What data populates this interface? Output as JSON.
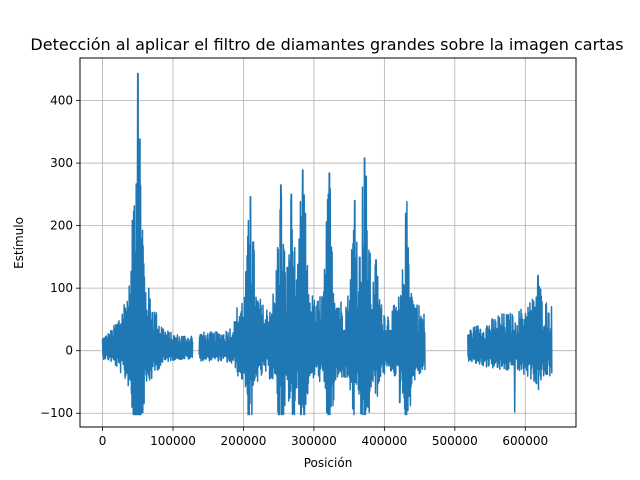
{
  "chart_data": {
    "type": "line",
    "title": "Detección al aplicar el filtro de diamantes grandes sobre la imagen cartas",
    "xlabel": "Posición",
    "ylabel": "Estímulo",
    "xlim": [
      -32000,
      672000
    ],
    "ylim": [
      -122,
      468
    ],
    "xticks": [
      0,
      100000,
      200000,
      300000,
      400000,
      500000,
      600000
    ],
    "xtick_labels": [
      "0",
      "100000",
      "200000",
      "300000",
      "400000",
      "500000",
      "600000"
    ],
    "yticks": [
      -100,
      0,
      100,
      200,
      300,
      400
    ],
    "ytick_labels": [
      "−100",
      "0",
      "100",
      "200",
      "300",
      "400"
    ],
    "grid": true,
    "legend": "none",
    "line_color": "#1f77b4",
    "series": [
      {
        "x_range": [
          0,
          638000
        ],
        "gaps": [
          [
            128000,
            137000
          ],
          [
            458000,
            518000
          ]
        ],
        "peaks": [
          {
            "x": 50000,
            "y": 443
          },
          {
            "x": 210000,
            "y": 246
          },
          {
            "x": 253000,
            "y": 265
          },
          {
            "x": 268000,
            "y": 250
          },
          {
            "x": 284000,
            "y": 289
          },
          {
            "x": 322000,
            "y": 284
          },
          {
            "x": 358000,
            "y": 240
          },
          {
            "x": 372000,
            "y": 308
          },
          {
            "x": 388000,
            "y": 145
          },
          {
            "x": 432000,
            "y": 238
          },
          {
            "x": 618000,
            "y": 120
          }
        ],
        "troughs": [
          {
            "x": 585000,
            "y": -98
          },
          {
            "x": 422000,
            "y": -83
          },
          {
            "x": 377000,
            "y": -90
          }
        ]
      }
    ]
  }
}
